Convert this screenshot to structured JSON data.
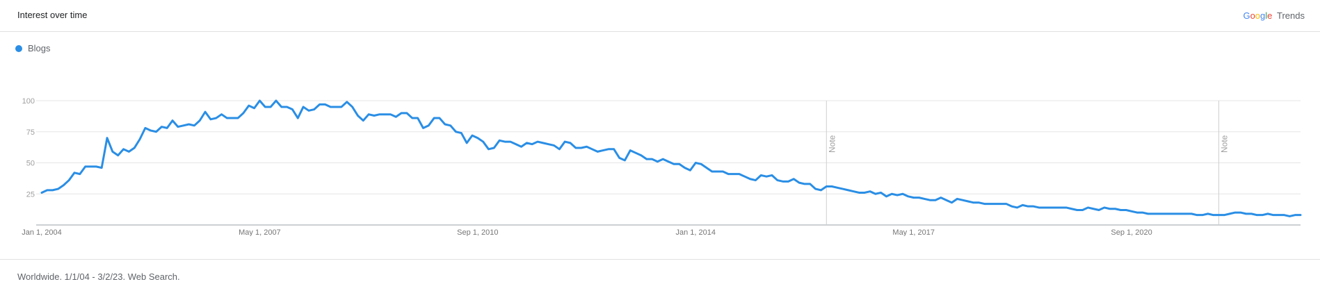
{
  "header": {
    "title": "Interest over time",
    "brand_google": "Google",
    "brand_trends": "Trends"
  },
  "legend": {
    "label": "Blogs"
  },
  "footer": {
    "text": "Worldwide. 1/1/04 - 3/2/23. Web Search."
  },
  "colors": {
    "series": "#2a8ee5",
    "grid": "#e5e5e5",
    "axis": "#9aa0a6",
    "text": "#757575"
  },
  "chart_data": {
    "type": "line",
    "title": "",
    "xlabel": "",
    "ylabel": "",
    "ylim": [
      0,
      100
    ],
    "yticks": [
      25,
      50,
      75,
      100
    ],
    "xticks": [
      {
        "label": "Jan 1, 2004",
        "index": 0
      },
      {
        "label": "May 1, 2007",
        "index": 40
      },
      {
        "label": "Sep 1, 2010",
        "index": 80
      },
      {
        "label": "Jan 1, 2014",
        "index": 120
      },
      {
        "label": "May 1, 2017",
        "index": 160
      },
      {
        "label": "Sep 1, 2020",
        "index": 200
      }
    ],
    "notes": [
      {
        "label": "Note",
        "index": 144
      },
      {
        "label": "Note",
        "index": 216
      }
    ],
    "legend_position": "top-left",
    "grid": true,
    "series": [
      {
        "name": "Blogs",
        "values": [
          26,
          28,
          28,
          29,
          32,
          36,
          42,
          41,
          47,
          47,
          47,
          46,
          70,
          59,
          56,
          61,
          59,
          62,
          69,
          78,
          76,
          75,
          79,
          78,
          84,
          79,
          80,
          81,
          80,
          84,
          91,
          85,
          86,
          89,
          86,
          86,
          86,
          90,
          96,
          94,
          100,
          95,
          95,
          100,
          95,
          95,
          93,
          86,
          95,
          92,
          93,
          97,
          97,
          95,
          95,
          95,
          99,
          95,
          88,
          84,
          89,
          88,
          89,
          89,
          89,
          87,
          90,
          90,
          86,
          86,
          78,
          80,
          86,
          86,
          81,
          80,
          75,
          74,
          66,
          72,
          70,
          67,
          61,
          62,
          68,
          67,
          67,
          65,
          63,
          66,
          65,
          67,
          66,
          65,
          64,
          61,
          67,
          66,
          62,
          62,
          63,
          61,
          59,
          60,
          61,
          61,
          54,
          52,
          60,
          58,
          56,
          53,
          53,
          51,
          53,
          51,
          49,
          49,
          46,
          44,
          50,
          49,
          46,
          43,
          43,
          43,
          41,
          41,
          41,
          39,
          37,
          36,
          40,
          39,
          40,
          36,
          35,
          35,
          37,
          34,
          33,
          33,
          29,
          28,
          31,
          31,
          30,
          29,
          28,
          27,
          26,
          26,
          27,
          25,
          26,
          23,
          25,
          24,
          25,
          23,
          22,
          22,
          21,
          20,
          20,
          22,
          20,
          18,
          21,
          20,
          19,
          18,
          18,
          17,
          17,
          17,
          17,
          17,
          15,
          14,
          16,
          15,
          15,
          14,
          14,
          14,
          14,
          14,
          14,
          13,
          12,
          12,
          14,
          13,
          12,
          14,
          13,
          13,
          12,
          12,
          11,
          10,
          10,
          9,
          9,
          9,
          9,
          9,
          9,
          9,
          9,
          9,
          8,
          8,
          9,
          8,
          8,
          8,
          9,
          10,
          10,
          9,
          9,
          8,
          8,
          9,
          8,
          8,
          8,
          7,
          8,
          8
        ]
      }
    ]
  }
}
